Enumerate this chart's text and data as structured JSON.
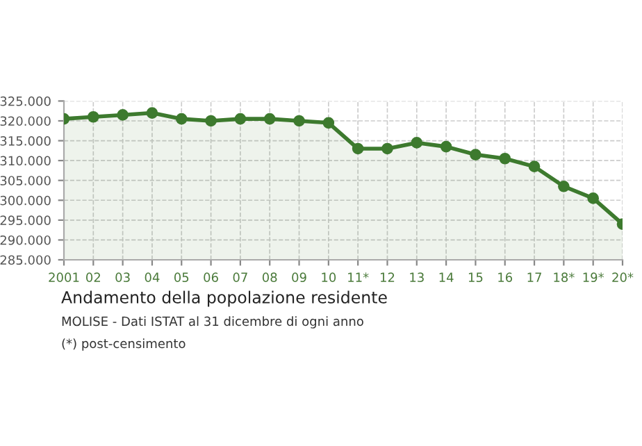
{
  "chart_data": {
    "type": "area",
    "title": "Andamento della popolazione residente",
    "annotations": [
      "MOLISE - Dati ISTAT al 31 dicembre di ogni anno",
      "(*) post-censimento"
    ],
    "categories": [
      "2001",
      "02",
      "03",
      "04",
      "05",
      "06",
      "07",
      "08",
      "09",
      "10",
      "11*",
      "12",
      "13",
      "14",
      "15",
      "16",
      "17",
      "18*",
      "19*",
      "20*"
    ],
    "series": [
      {
        "color": "#3d7a2e",
        "values": [
          320500,
          321000,
          321500,
          322000,
          320500,
          320000,
          320500,
          320500,
          320000,
          319500,
          313000,
          313000,
          314500,
          313500,
          311500,
          310500,
          308500,
          303500,
          300500,
          294000
        ]
      }
    ],
    "ylim": [
      285000,
      325000
    ],
    "yticks": [
      {
        "value": 285000,
        "label": "285.000"
      },
      {
        "value": 290000,
        "label": "290.000"
      },
      {
        "value": 295000,
        "label": "295.000"
      },
      {
        "value": 300000,
        "label": "300.000"
      },
      {
        "value": 305000,
        "label": "305.000"
      },
      {
        "value": 310000,
        "label": "310.000"
      },
      {
        "value": 315000,
        "label": "315.000"
      },
      {
        "value": 320000,
        "label": "320.000"
      },
      {
        "value": 325000,
        "label": "325.000"
      }
    ],
    "grid": true,
    "marker": "circle",
    "line_style": "solid"
  }
}
